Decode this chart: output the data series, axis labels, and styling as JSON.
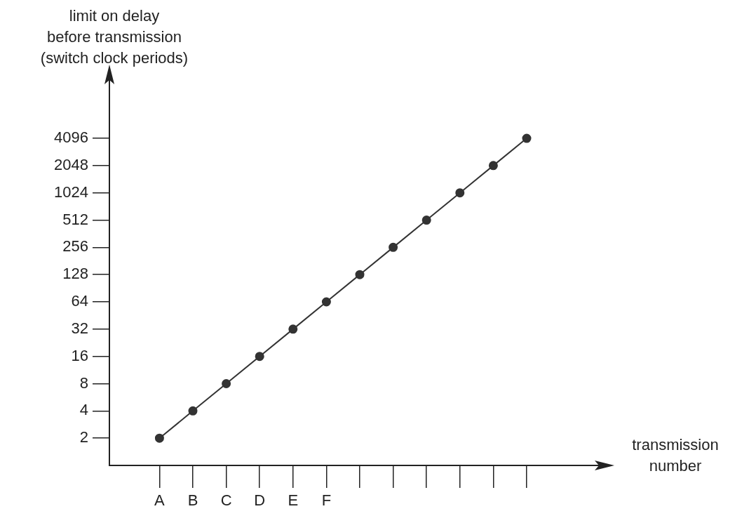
{
  "chart_data": {
    "type": "line",
    "ylabel": "limit on delay\nbefore transmission\n(switch clock periods)",
    "annotations": [
      "transmission\nnumber"
    ],
    "categories": [
      "A",
      "B",
      "C",
      "D",
      "E",
      "F",
      null,
      null,
      null,
      null,
      null,
      null
    ],
    "values": [
      2,
      4,
      8,
      16,
      32,
      64,
      128,
      256,
      512,
      1024,
      2048,
      4096
    ],
    "color": "#333333",
    "marker": "circle",
    "log": "y",
    "ylim": [
      1,
      24000
    ],
    "yticks": [
      2,
      4,
      8,
      16,
      32,
      64,
      128,
      256,
      512,
      1024,
      2048,
      4096
    ]
  }
}
